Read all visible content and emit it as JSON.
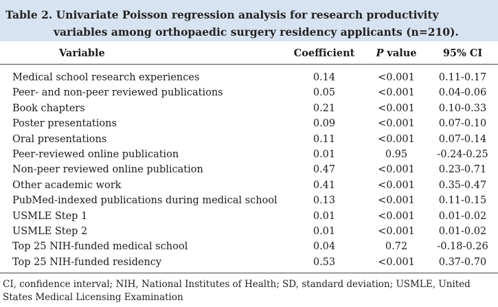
{
  "caption": {
    "line1": "Table 2. Univariate Poisson regression analysis for research productivity",
    "line2": "variables among orthopaedic surgery residency applicants (n=210)."
  },
  "headers": {
    "variable": "Variable",
    "coefficient": "Coefficient",
    "p_italic": "P",
    "p_rest": " value",
    "ci": "95% CI"
  },
  "rows": [
    {
      "variable": "Medical school research experiences",
      "coefficient": "0.14",
      "p_value": "<0.001",
      "ci": "0.11-0.17"
    },
    {
      "variable": "Peer- and non-peer reviewed publications",
      "coefficient": "0.05",
      "p_value": "<0.001",
      "ci": "0.04-0.06"
    },
    {
      "variable": "Book chapters",
      "coefficient": "0.21",
      "p_value": "<0.001",
      "ci": "0.10-0.33"
    },
    {
      "variable": "Poster presentations",
      "coefficient": "0.09",
      "p_value": "<0.001",
      "ci": "0.07-0.10"
    },
    {
      "variable": "Oral presentations",
      "coefficient": "0.11",
      "p_value": "<0.001",
      "ci": "0.07-0.14"
    },
    {
      "variable": "Peer-reviewed online publication",
      "coefficient": "0.01",
      "p_value": "0.95",
      "ci": "-0.24-0.25"
    },
    {
      "variable": "Non-peer reviewed online publication",
      "coefficient": "0.47",
      "p_value": "<0.001",
      "ci": "0.23-0.71"
    },
    {
      "variable": "Other academic work",
      "coefficient": "0.41",
      "p_value": "<0.001",
      "ci": "0.35-0.47"
    },
    {
      "variable": "PubMed-indexed publications during medical school",
      "coefficient": "0.13",
      "p_value": "<0.001",
      "ci": "0.11-0.15"
    },
    {
      "variable": "USMLE Step 1",
      "coefficient": "0.01",
      "p_value": "<0.001",
      "ci": "0.01-0.02"
    },
    {
      "variable": "USMLE Step 2",
      "coefficient": "0.01",
      "p_value": "<0.001",
      "ci": "0.01-0.02"
    },
    {
      "variable": "Top 25 NIH-funded medical school",
      "coefficient": "0.04",
      "p_value": "0.72",
      "ci": "-0.18-0.26"
    },
    {
      "variable": "Top 25 NIH-funded residency",
      "coefficient": "0.53",
      "p_value": "<0.001",
      "ci": "0.37-0.70"
    }
  ],
  "footnote": "CI, confidence interval; NIH, National Institutes of Health; SD, standard deviation; USMLE, United States Medical Licensing Examination",
  "colors": {
    "caption_background": "#d7e3f0",
    "rule": "#444444"
  }
}
